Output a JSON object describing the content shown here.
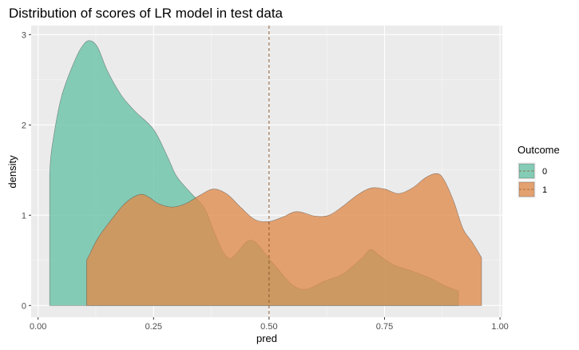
{
  "chart_data": {
    "type": "area",
    "subtype": "density",
    "title": "Distribution of scores of LR model in test data",
    "xlabel": "pred",
    "ylabel": "density",
    "xlim": [
      -0.015,
      1.005
    ],
    "ylim": [
      -0.13,
      3.1
    ],
    "x_ticks": [
      0,
      0.25,
      0.5,
      0.75,
      1
    ],
    "x_tick_labels": [
      "0.00",
      "0.25",
      "0.50",
      "0.75",
      "1.00"
    ],
    "y_ticks": [
      0,
      1,
      2,
      3
    ],
    "y_tick_labels": [
      "0",
      "1",
      "2",
      "3"
    ],
    "grid": true,
    "legend": {
      "title": "Outcome",
      "position": "right"
    },
    "vline": {
      "x": 0.5,
      "style": "dashed",
      "color": "#8c5a2e"
    },
    "series": [
      {
        "name": "0",
        "fill": "#66c2a5",
        "alpha": 0.78,
        "x": [
          0.025,
          0.03,
          0.05,
          0.08,
          0.1,
          0.115,
          0.13,
          0.15,
          0.18,
          0.21,
          0.25,
          0.28,
          0.3,
          0.33,
          0.36,
          0.38,
          0.4,
          0.415,
          0.43,
          0.45,
          0.465,
          0.48,
          0.5,
          0.52,
          0.55,
          0.58,
          0.62,
          0.66,
          0.7,
          0.72,
          0.74,
          0.77,
          0.81,
          0.85,
          0.88,
          0.91
        ],
        "y": [
          1.46,
          1.75,
          2.3,
          2.72,
          2.9,
          2.93,
          2.85,
          2.6,
          2.33,
          2.15,
          1.95,
          1.65,
          1.43,
          1.25,
          1.08,
          0.83,
          0.6,
          0.52,
          0.58,
          0.7,
          0.72,
          0.65,
          0.52,
          0.4,
          0.23,
          0.18,
          0.27,
          0.35,
          0.52,
          0.62,
          0.55,
          0.45,
          0.38,
          0.3,
          0.22,
          0.16
        ]
      },
      {
        "name": "1",
        "fill": "#e08b4b",
        "alpha": 0.78,
        "x": [
          0.105,
          0.11,
          0.13,
          0.16,
          0.19,
          0.22,
          0.24,
          0.26,
          0.29,
          0.32,
          0.35,
          0.38,
          0.41,
          0.44,
          0.47,
          0.5,
          0.53,
          0.56,
          0.6,
          0.63,
          0.66,
          0.69,
          0.72,
          0.75,
          0.78,
          0.81,
          0.84,
          0.865,
          0.88,
          0.9,
          0.92,
          0.94,
          0.96
        ],
        "y": [
          0.5,
          0.55,
          0.75,
          0.96,
          1.14,
          1.23,
          1.2,
          1.13,
          1.09,
          1.13,
          1.22,
          1.29,
          1.23,
          1.08,
          0.95,
          0.93,
          0.98,
          1.04,
          0.99,
          1.0,
          1.1,
          1.22,
          1.3,
          1.29,
          1.24,
          1.3,
          1.42,
          1.46,
          1.38,
          1.15,
          0.85,
          0.7,
          0.53
        ]
      }
    ]
  }
}
